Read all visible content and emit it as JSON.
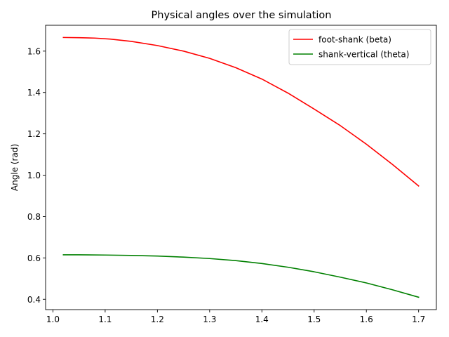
{
  "chart_data": {
    "type": "line",
    "title": "Physical angles over the simulation",
    "xlabel": "",
    "ylabel": "Angle (rad)",
    "xlim": [
      0.986,
      1.734
    ],
    "ylim": [
      0.35,
      1.725
    ],
    "xticks": [
      1.0,
      1.1,
      1.2,
      1.3,
      1.4,
      1.5,
      1.6,
      1.7
    ],
    "xtick_labels": [
      "1.0",
      "1.1",
      "1.2",
      "1.3",
      "1.4",
      "1.5",
      "1.6",
      "1.7"
    ],
    "yticks": [
      0.4,
      0.6,
      0.8,
      1.0,
      1.2,
      1.4,
      1.6
    ],
    "ytick_labels": [
      "0.4",
      "0.6",
      "0.8",
      "1.0",
      "1.2",
      "1.4",
      "1.6"
    ],
    "grid": false,
    "legend_position": "top-right",
    "series": [
      {
        "name": "foot-shank (beta)",
        "color": "#ff0000",
        "x": [
          1.02,
          1.05,
          1.08,
          1.11,
          1.15,
          1.2,
          1.25,
          1.3,
          1.35,
          1.4,
          1.45,
          1.5,
          1.55,
          1.6,
          1.65,
          1.7
        ],
        "y": [
          1.666,
          1.665,
          1.663,
          1.658,
          1.647,
          1.627,
          1.6,
          1.565,
          1.52,
          1.465,
          1.397,
          1.32,
          1.24,
          1.15,
          1.052,
          0.948
        ]
      },
      {
        "name": "shank-vertical (theta)",
        "color": "#008000",
        "x": [
          1.02,
          1.05,
          1.1,
          1.15,
          1.2,
          1.25,
          1.3,
          1.35,
          1.4,
          1.45,
          1.5,
          1.55,
          1.6,
          1.65,
          1.7
        ],
        "y": [
          0.615,
          0.615,
          0.614,
          0.612,
          0.609,
          0.604,
          0.597,
          0.587,
          0.573,
          0.555,
          0.533,
          0.507,
          0.479,
          0.446,
          0.41
        ]
      }
    ]
  }
}
